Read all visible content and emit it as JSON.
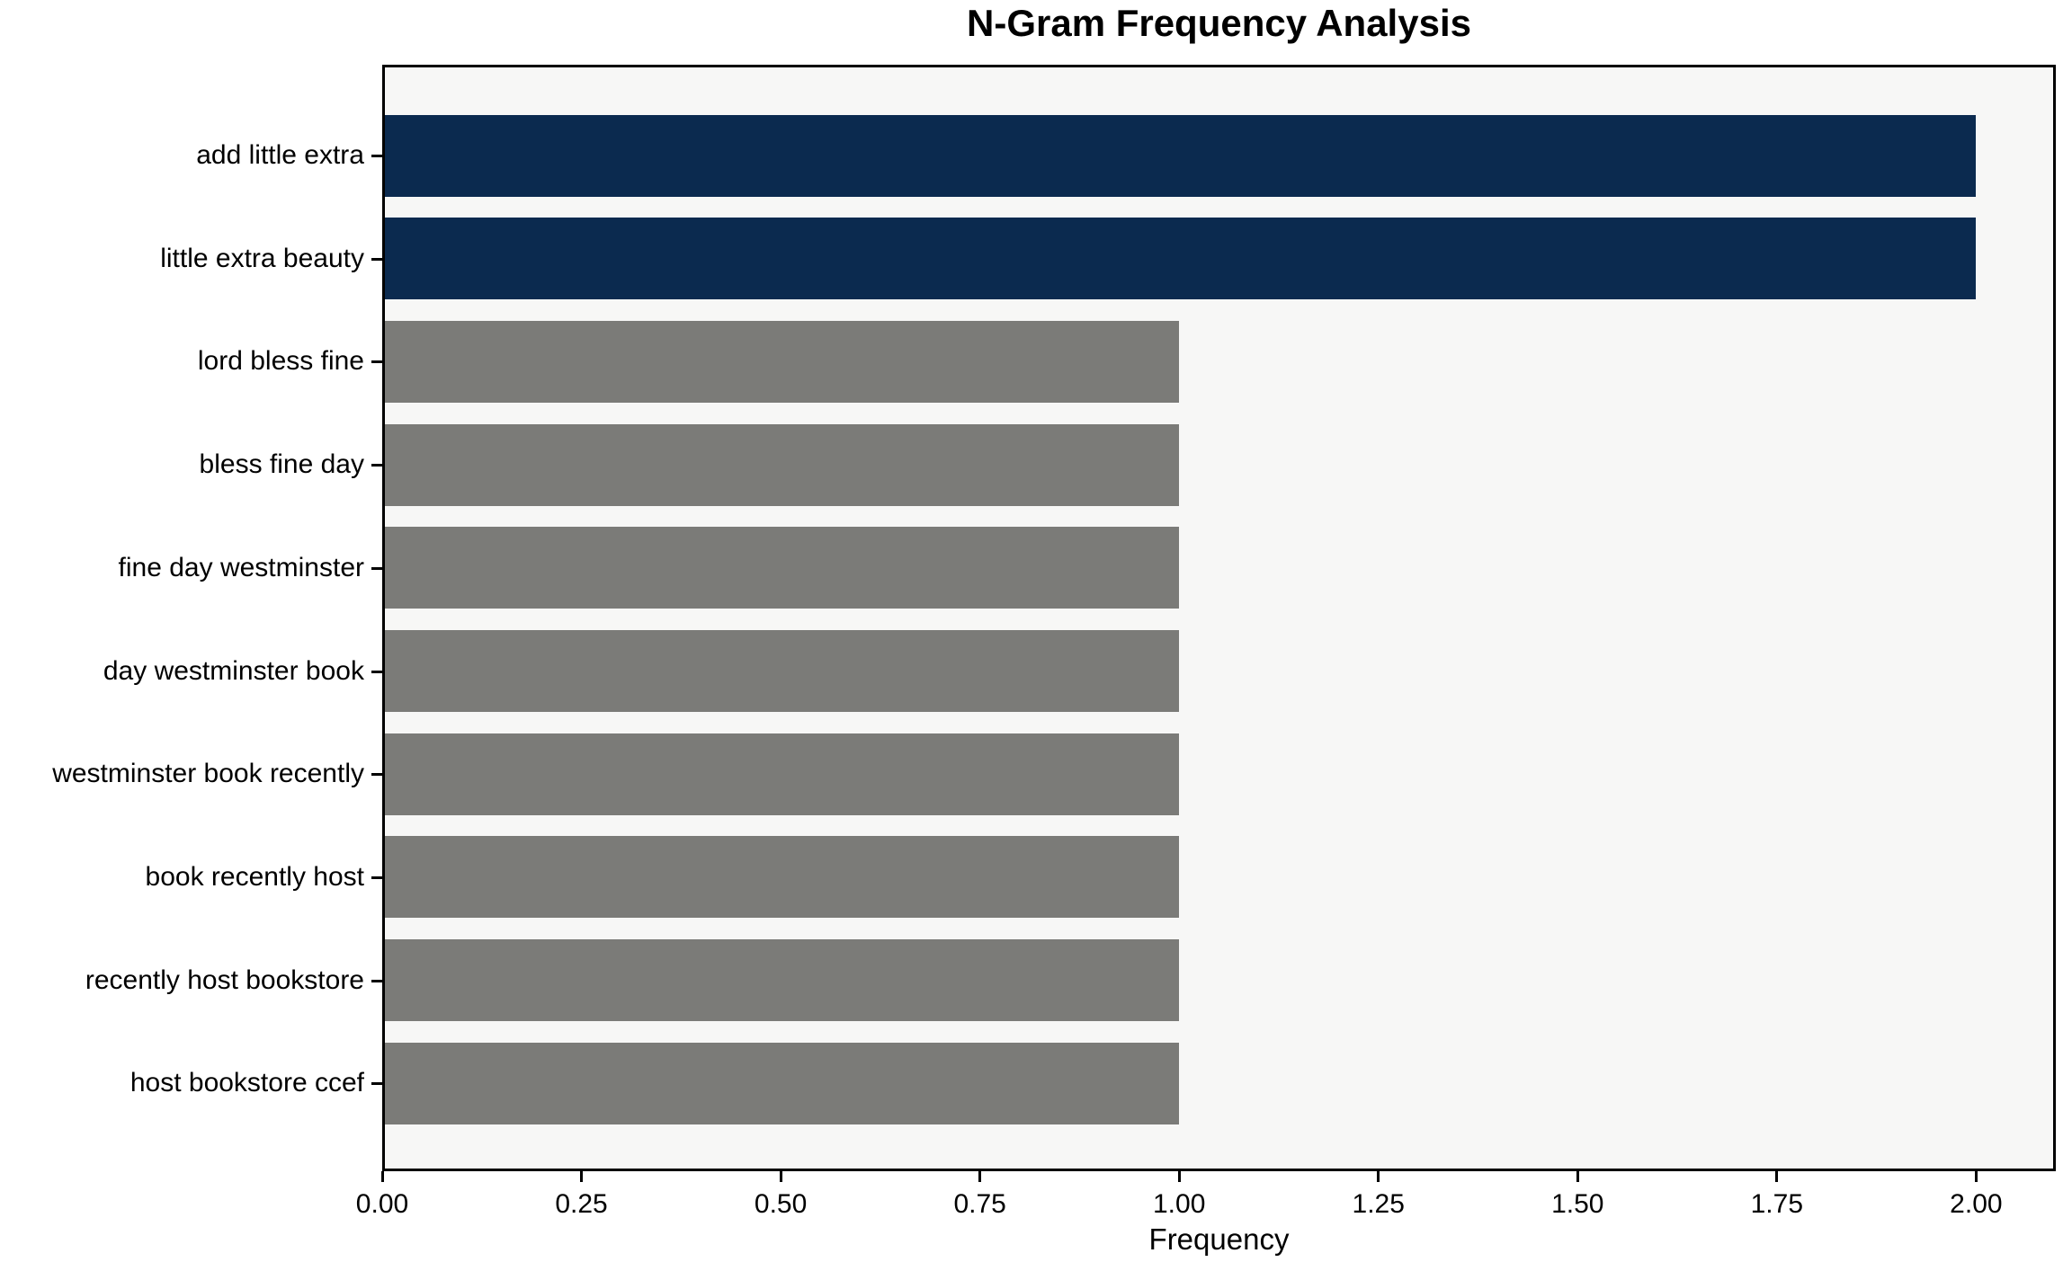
{
  "chart_data": {
    "type": "bar",
    "orientation": "horizontal",
    "title": "N-Gram Frequency Analysis",
    "xlabel": "Frequency",
    "ylabel": "",
    "categories": [
      "add little extra",
      "little extra beauty",
      "lord bless fine",
      "bless fine day",
      "fine day westminster",
      "day westminster book",
      "westminster book recently",
      "book recently host",
      "recently host bookstore",
      "host bookstore ccef"
    ],
    "values": [
      2,
      2,
      1,
      1,
      1,
      1,
      1,
      1,
      1,
      1
    ],
    "bar_colors": [
      "#0b2a4f",
      "#0b2a4f",
      "#7b7b78",
      "#7b7b78",
      "#7b7b78",
      "#7b7b78",
      "#7b7b78",
      "#7b7b78",
      "#7b7b78",
      "#7b7b78"
    ],
    "xlim": [
      0,
      2.1
    ],
    "xtick_values": [
      0,
      0.25,
      0.5,
      0.75,
      1.0,
      1.25,
      1.5,
      1.75,
      2.0
    ],
    "xtick_labels": [
      "0.00",
      "0.25",
      "0.50",
      "0.75",
      "1.00",
      "1.25",
      "1.50",
      "1.75",
      "2.00"
    ],
    "grid": false,
    "legend": null,
    "colors": {
      "highlight_bar": "#0b2a4f",
      "default_bar": "#7b7b78",
      "plot_background": "#f7f7f6",
      "figure_background": "#ffffff",
      "axis": "#000000",
      "text": "#000000"
    }
  }
}
